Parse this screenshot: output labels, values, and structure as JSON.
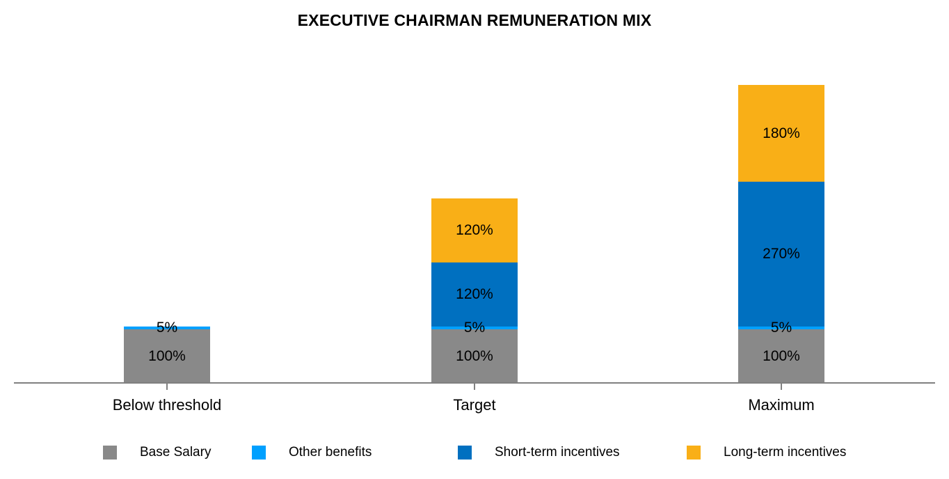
{
  "title": "EXECUTIVE CHAIRMAN REMUNERATION MIX",
  "chart_data": {
    "type": "bar",
    "stacked": true,
    "title": "EXECUTIVE CHAIRMAN REMUNERATION MIX",
    "categories": [
      "Below threshold",
      "Target",
      "Maximum"
    ],
    "series": [
      {
        "name": "Base Salary",
        "color": "#898989",
        "values": [
          100,
          100,
          100
        ]
      },
      {
        "name": "Other benefits",
        "color": "#00A0FF",
        "values": [
          5,
          5,
          5
        ]
      },
      {
        "name": "Short-term incentives",
        "color": "#0070C0",
        "values": [
          0,
          120,
          270
        ]
      },
      {
        "name": "Long-term incentives",
        "color": "#F9AF17",
        "values": [
          0,
          120,
          180
        ]
      }
    ],
    "value_unit": "%",
    "data_labels": true,
    "xlabel": "",
    "ylabel": "",
    "ylim": [
      0,
      560
    ],
    "grid": false,
    "value_axis_visible": false,
    "legend_position": "bottom",
    "axis_color": "#808080"
  }
}
